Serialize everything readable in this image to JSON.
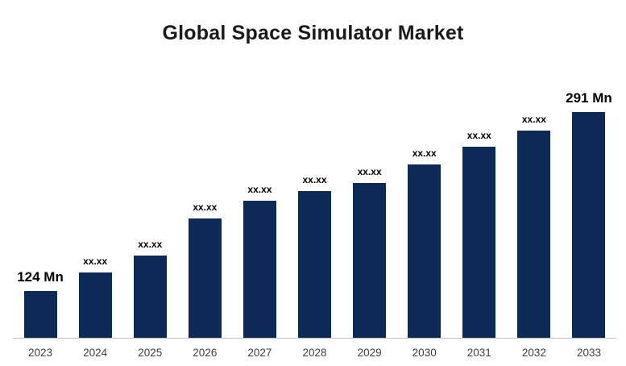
{
  "title": "Global Space Simulator Market",
  "colors": {
    "bar": "#0d2a56",
    "title": "#1a1a1a",
    "axis_label": "#3d3d3d",
    "baseline": "#c0c0c0"
  },
  "chart_data": {
    "type": "bar",
    "title": "Global Space Simulator Market",
    "categories": [
      "2023",
      "2024",
      "2025",
      "2026",
      "2027",
      "2028",
      "2029",
      "2030",
      "2031",
      "2032",
      "2033"
    ],
    "values": [
      124,
      141,
      157,
      192,
      208,
      217,
      225,
      242,
      259,
      274,
      291
    ],
    "labels": [
      "124 Mn",
      "xx.xx",
      "xx.xx",
      "xx.xx",
      "xx.xx",
      "xx.xx",
      "xx.xx",
      "xx.xx",
      "xx.xx",
      "xx.xx",
      "291 Mn"
    ],
    "unit": "Mn",
    "xlabel": "",
    "ylabel": "",
    "legend": false,
    "grid": false,
    "value_labels_shown": true
  }
}
